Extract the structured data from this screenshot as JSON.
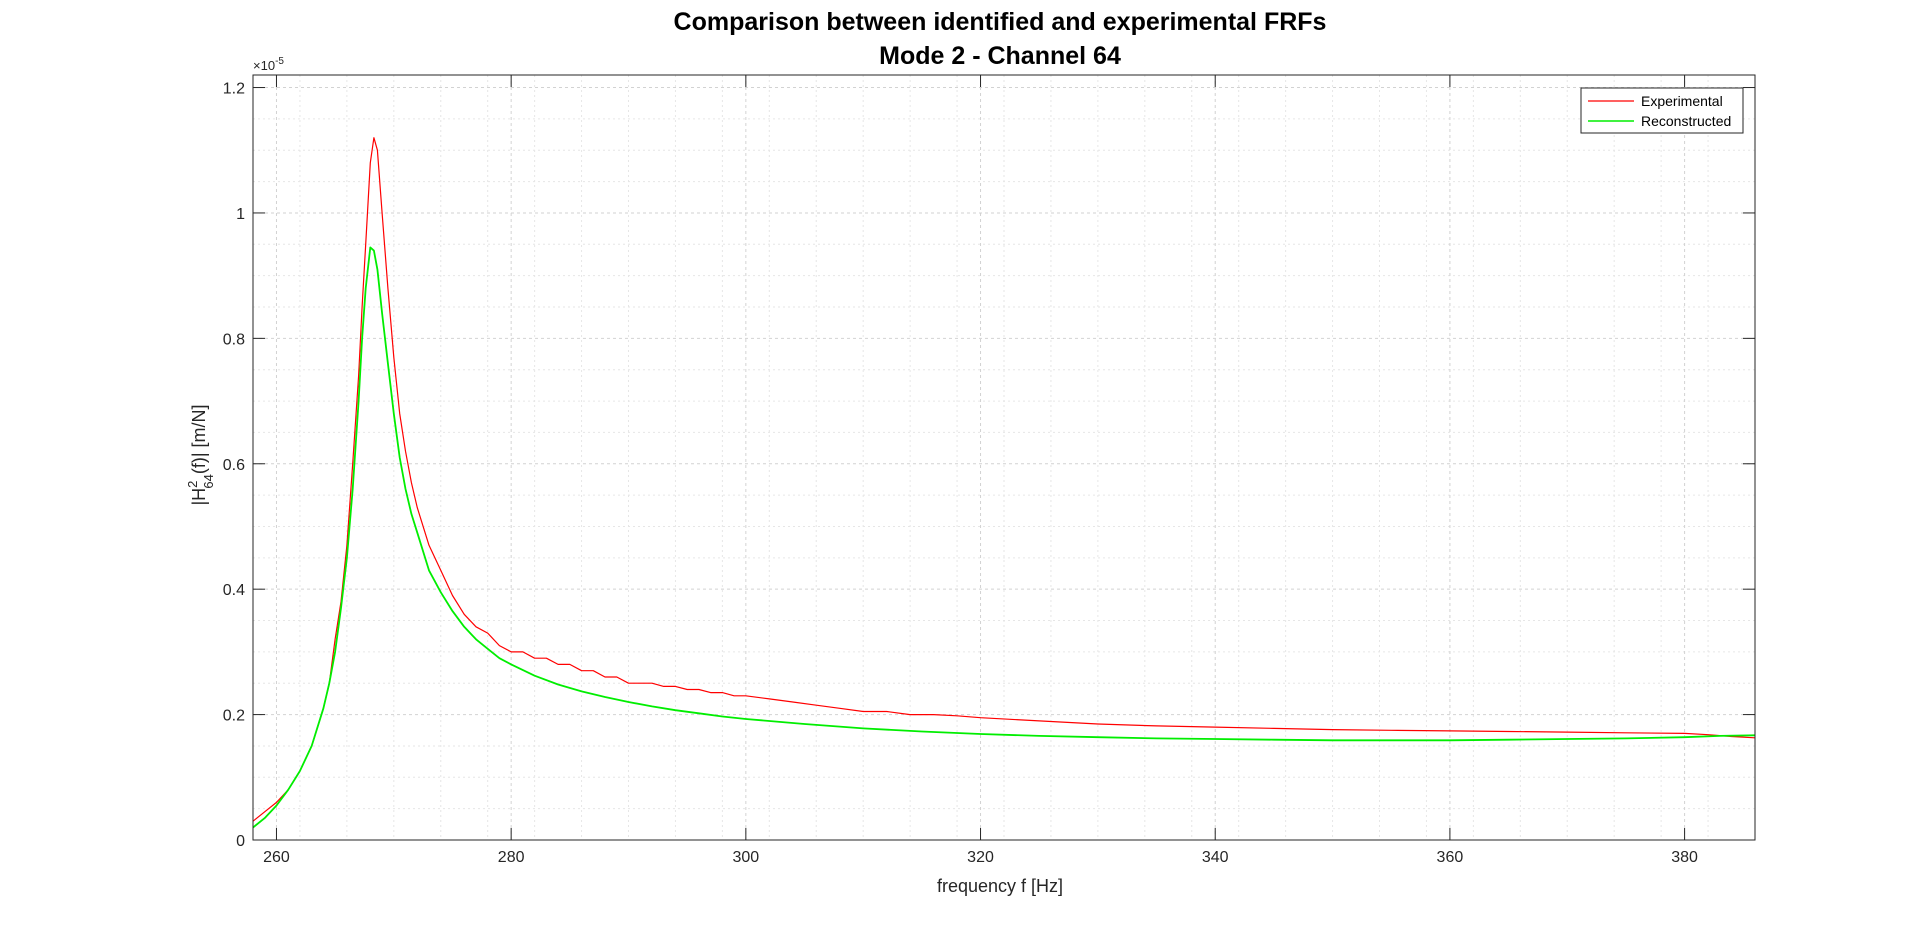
{
  "chart_data": {
    "type": "line",
    "title": [
      "Comparison between identified and experimental FRFs",
      "Mode 2 - Channel 64"
    ],
    "xlabel": "frequency f [Hz]",
    "ylabel": {
      "main": "|H",
      "superscript": "2",
      "subscript": "64",
      "rest": "(f)|   [m/N]"
    },
    "y_exponent": {
      "base": "×10",
      "power": "-5"
    },
    "xlim": [
      258,
      386
    ],
    "ylim": [
      0,
      1.22
    ],
    "x_ticks": [
      260,
      280,
      300,
      320,
      340,
      360,
      380
    ],
    "y_ticks": [
      0,
      0.2,
      0.4,
      0.6,
      0.8,
      1,
      1.2
    ],
    "x_tick_labels": [
      "260",
      "280",
      "300",
      "320",
      "340",
      "360",
      "380"
    ],
    "y_tick_labels": [
      "0",
      "0.2",
      "0.4",
      "0.6",
      "0.8",
      "1",
      "1.2"
    ],
    "grid": true,
    "minor_grid": true,
    "legend_position": "top-right",
    "series": [
      {
        "name": "Experimental",
        "color": "#ff0000",
        "x": [
          258,
          259,
          260,
          261,
          262,
          263,
          264,
          264.5,
          265,
          265.5,
          266,
          266.5,
          267,
          267.3,
          267.6,
          268,
          268.3,
          268.6,
          269,
          269.5,
          270,
          270.5,
          271,
          271.5,
          272,
          273,
          274,
          275,
          276,
          277,
          278,
          279,
          280,
          281,
          282,
          283,
          284,
          285,
          286,
          287,
          288,
          289,
          290,
          291,
          292,
          293,
          294,
          295,
          296,
          297,
          298,
          299,
          300,
          302,
          304,
          306,
          308,
          310,
          312,
          314,
          316,
          318,
          320,
          325,
          330,
          335,
          340,
          345,
          350,
          355,
          360,
          365,
          370,
          375,
          380,
          382,
          384,
          386
        ],
        "y": [
          0.03,
          0.045,
          0.06,
          0.08,
          0.11,
          0.15,
          0.21,
          0.25,
          0.32,
          0.38,
          0.47,
          0.6,
          0.74,
          0.85,
          0.95,
          1.08,
          1.12,
          1.1,
          1.0,
          0.88,
          0.77,
          0.68,
          0.62,
          0.57,
          0.53,
          0.47,
          0.43,
          0.39,
          0.36,
          0.34,
          0.33,
          0.31,
          0.3,
          0.3,
          0.29,
          0.29,
          0.28,
          0.28,
          0.27,
          0.27,
          0.26,
          0.26,
          0.25,
          0.25,
          0.25,
          0.245,
          0.245,
          0.24,
          0.24,
          0.235,
          0.235,
          0.23,
          0.23,
          0.225,
          0.22,
          0.215,
          0.21,
          0.205,
          0.205,
          0.2,
          0.2,
          0.198,
          0.195,
          0.19,
          0.185,
          0.182,
          0.18,
          0.178,
          0.176,
          0.175,
          0.174,
          0.173,
          0.172,
          0.171,
          0.17,
          0.168,
          0.165,
          0.163
        ]
      },
      {
        "name": "Reconstructed",
        "color": "#00ee00",
        "x": [
          258,
          259,
          260,
          261,
          262,
          263,
          264,
          264.5,
          265,
          265.5,
          266,
          266.5,
          267,
          267.3,
          267.6,
          268,
          268.3,
          268.6,
          269,
          269.5,
          270,
          270.5,
          271,
          271.5,
          272,
          273,
          274,
          275,
          276,
          277,
          278,
          279,
          280,
          282,
          284,
          286,
          288,
          290,
          292,
          294,
          296,
          298,
          300,
          305,
          310,
          315,
          320,
          325,
          330,
          335,
          340,
          345,
          350,
          355,
          360,
          365,
          370,
          375,
          380,
          383,
          386
        ],
        "y": [
          0.02,
          0.035,
          0.055,
          0.08,
          0.11,
          0.15,
          0.21,
          0.25,
          0.3,
          0.37,
          0.45,
          0.56,
          0.7,
          0.8,
          0.88,
          0.945,
          0.94,
          0.91,
          0.84,
          0.76,
          0.68,
          0.61,
          0.56,
          0.52,
          0.49,
          0.43,
          0.395,
          0.365,
          0.34,
          0.32,
          0.305,
          0.29,
          0.28,
          0.262,
          0.248,
          0.237,
          0.228,
          0.22,
          0.213,
          0.207,
          0.202,
          0.197,
          0.193,
          0.185,
          0.178,
          0.173,
          0.169,
          0.166,
          0.164,
          0.162,
          0.161,
          0.16,
          0.159,
          0.159,
          0.159,
          0.16,
          0.161,
          0.162,
          0.164,
          0.166,
          0.167
        ]
      }
    ]
  }
}
